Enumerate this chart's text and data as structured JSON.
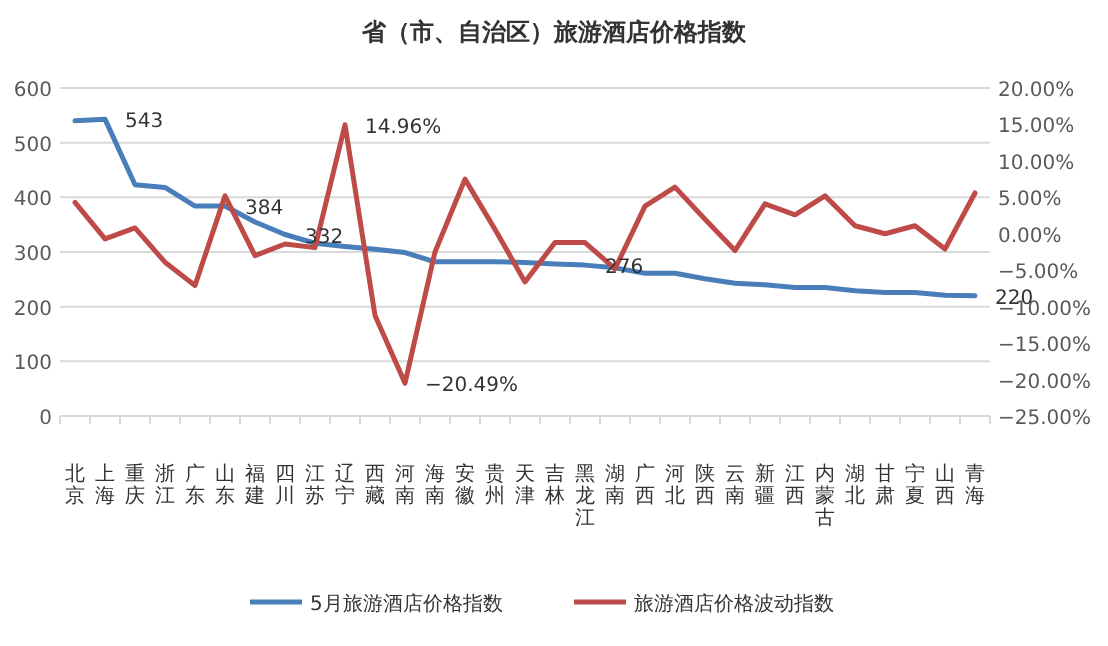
{
  "chart_data": {
    "type": "line",
    "title": "省（市、自治区）旅游酒店价格指数",
    "categories": [
      "北京",
      "上海",
      "重庆",
      "浙江",
      "广东",
      "山东",
      "福建",
      "四川",
      "江苏",
      "辽宁",
      "西藏",
      "河南",
      "海南",
      "安徽",
      "贵州",
      "天津",
      "吉林",
      "黑龙江",
      "湖南",
      "广西",
      "河北",
      "陕西",
      "云南",
      "新疆",
      "江西",
      "内蒙古",
      "湖北",
      "甘肃",
      "宁夏",
      "山西",
      "青海"
    ],
    "series": [
      {
        "name": "5月旅游酒店价格指数",
        "color": "#4a7ebb",
        "values": [
          540,
          543,
          423,
          418,
          384,
          384,
          355,
          332,
          316,
          310,
          305,
          299,
          282,
          282,
          282,
          281,
          278,
          276,
          271,
          261,
          261,
          251,
          243,
          240,
          235,
          235,
          229,
          226,
          226,
          221,
          220
        ],
        "value_labels": [
          null,
          "543",
          null,
          null,
          null,
          "384",
          null,
          "332",
          null,
          null,
          null,
          null,
          null,
          null,
          null,
          null,
          null,
          "276",
          null,
          null,
          null,
          null,
          null,
          null,
          null,
          null,
          null,
          null,
          null,
          null,
          "220"
        ]
      },
      {
        "name": "旅游酒店价格波动指数",
        "color": "#be4b48",
        "axis": "y2",
        "values": [
          4.3,
          -0.7,
          0.8,
          -3.9,
          -7.1,
          5.2,
          -3.0,
          -1.4,
          -1.9,
          14.96,
          -11.2,
          -20.49,
          -2.5,
          7.5,
          0.6,
          -6.6,
          -1.2,
          -1.2,
          -4.8,
          3.8,
          6.4,
          2.0,
          -2.3,
          4.1,
          2.6,
          5.2,
          1.1,
          0.0,
          1.1,
          -2.1,
          5.6
        ],
        "value_labels": [
          null,
          null,
          null,
          null,
          null,
          null,
          null,
          null,
          null,
          "14.96%",
          null,
          "−20.49%",
          null,
          null,
          null,
          null,
          null,
          null,
          null,
          null,
          null,
          null,
          null,
          null,
          null,
          null,
          null,
          null,
          null,
          null,
          null
        ]
      }
    ],
    "ylim": [
      0,
      600
    ],
    "yticks": [
      0,
      100,
      200,
      300,
      400,
      500,
      600
    ],
    "y2lim": [
      -25,
      20
    ],
    "y2ticks": [
      {
        "value": 20,
        "label": "20.00%"
      },
      {
        "value": 15,
        "label": "15.00%"
      },
      {
        "value": 10,
        "label": "10.00%"
      },
      {
        "value": 5,
        "label": "5.00%"
      },
      {
        "value": 0,
        "label": "0.00%"
      },
      {
        "value": -5,
        "label": "−5.00%"
      },
      {
        "value": -10,
        "label": "−10.00%"
      },
      {
        "value": -15,
        "label": "−15.00%"
      },
      {
        "value": -20,
        "label": "−20.00%"
      },
      {
        "value": -25,
        "label": "−25.00%"
      }
    ],
    "grid": "y",
    "legend": "bottom",
    "marker": "none",
    "line_style": "solid"
  }
}
